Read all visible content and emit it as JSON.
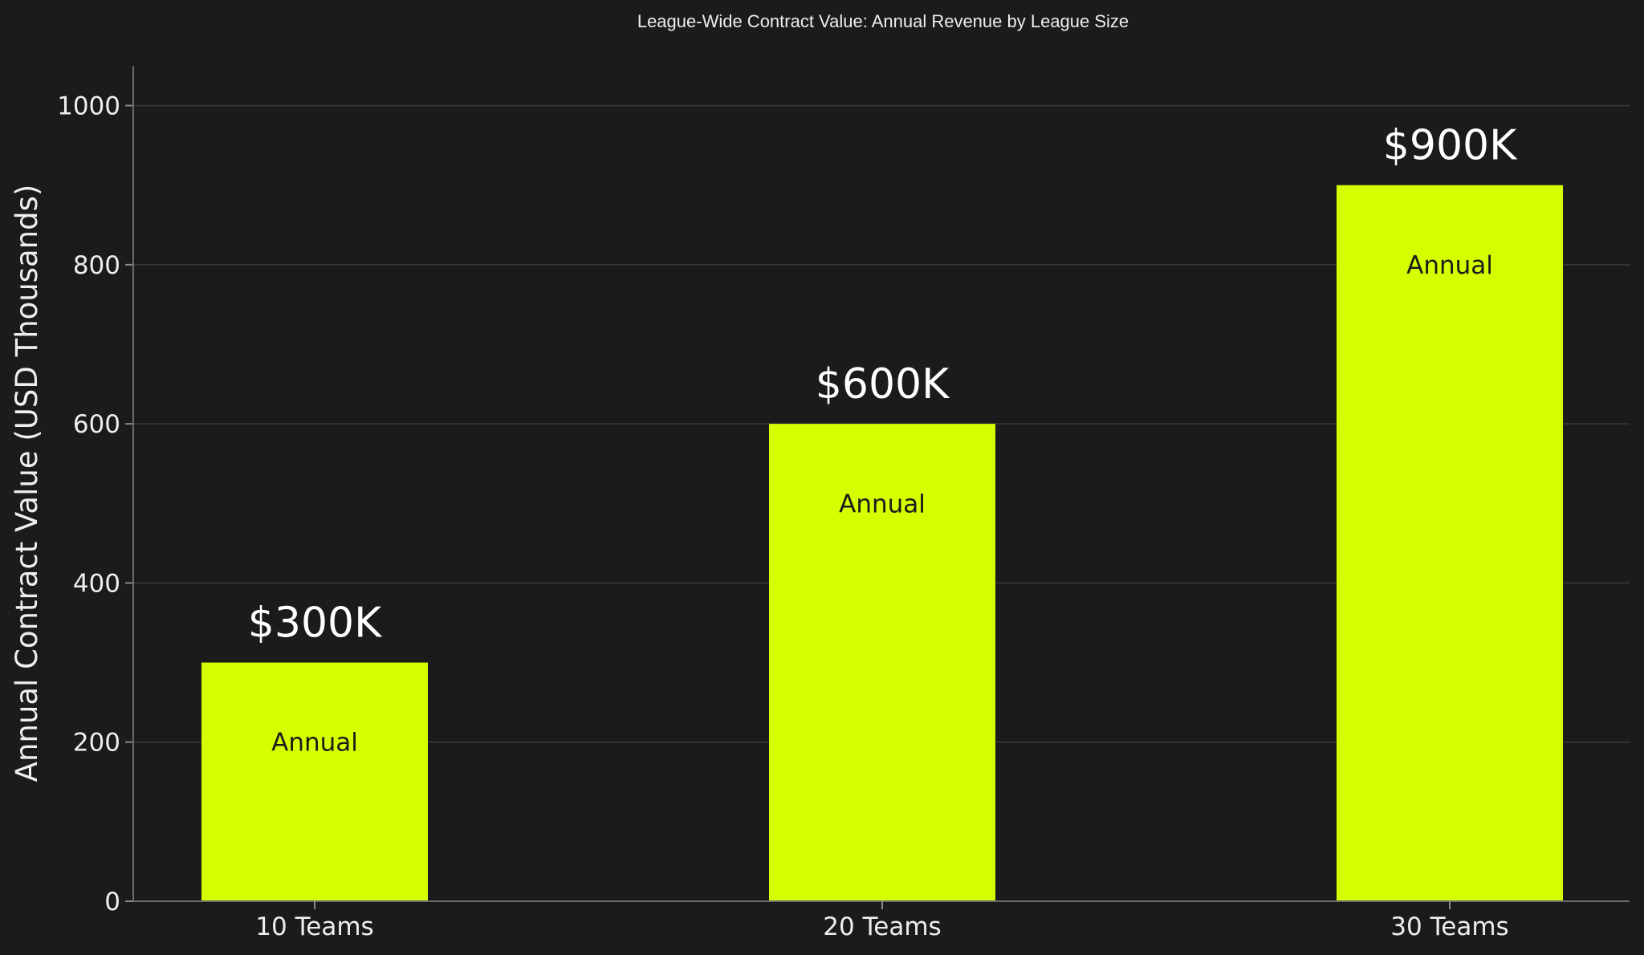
{
  "chart_data": {
    "type": "bar",
    "title": "League-Wide Contract Value: Annual Revenue by League Size",
    "xlabel": "",
    "ylabel": "Annual Contract Value (USD Thousands)",
    "categories": [
      "10 Teams",
      "20 Teams",
      "30 Teams"
    ],
    "series": [
      {
        "values": [
          300,
          600,
          900
        ],
        "value_labels": [
          "$300K",
          "$600K",
          "$900K"
        ],
        "bar_text": [
          "Annual",
          "Annual",
          "Annual"
        ],
        "color": "#d4ff00"
      }
    ],
    "ylim": [
      0,
      1050
    ],
    "yticks": [
      0,
      200,
      400,
      600,
      800,
      1000
    ],
    "grid": true,
    "legend": "none"
  },
  "colors": {
    "background": "#1b1b1b",
    "bar": "#d4ff00",
    "text": "#eeeeee",
    "grid": "#3a3a3a"
  }
}
